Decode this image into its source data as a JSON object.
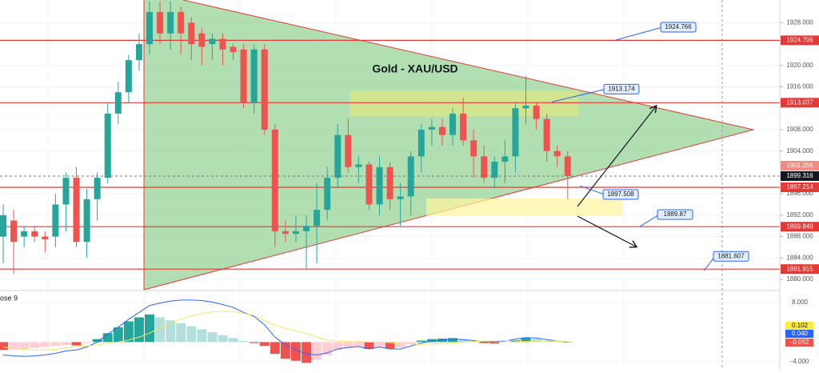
{
  "chart_data": [
    {
      "type": "candlestick",
      "title": "Gold - XAU/USD",
      "series": [
        {
          "up_color": "#26a69a",
          "down_color": "#ef5350",
          "open": [
            1888,
            1891,
            1888,
            1889,
            1888,
            1888,
            1894,
            1899,
            1887,
            1895,
            1899,
            1911,
            1915,
            1921,
            1924,
            1930,
            1926,
            1930,
            1928,
            1926,
            1924,
            1925,
            1923.5,
            1923,
            1913,
            1923,
            1908,
            1889,
            1888.5,
            1889,
            1890,
            1893,
            1899,
            1907,
            1901,
            1901.5,
            1894,
            1901,
            1895,
            1895.5,
            1903,
            1908,
            1908.5,
            1907,
            1911,
            1906,
            1903,
            1899,
            1902,
            1903,
            1912,
            1912.5,
            1910,
            1904,
            1903
          ],
          "high": [
            1894,
            1893,
            1890,
            1890,
            1889,
            1896,
            1900,
            1901,
            1897,
            1900,
            1913,
            1917,
            1922,
            1926,
            1932,
            1932,
            1932,
            1931,
            1929,
            1927,
            1926,
            1926,
            1924,
            1924,
            1924,
            1924,
            1909,
            1891,
            1892,
            1892,
            1898,
            1901,
            1909,
            1910,
            1903,
            1902,
            1903,
            1902,
            1898,
            1904,
            1909,
            1910,
            1910,
            1912,
            1914,
            1908,
            1905,
            1903,
            1906,
            1913,
            1918,
            1913,
            1911,
            1905,
            1904
          ],
          "low": [
            1883,
            1881,
            1886,
            1887,
            1885,
            1886,
            1889,
            1886,
            1884,
            1891,
            1898,
            1909,
            1913,
            1919,
            1922,
            1924,
            1923,
            1922,
            1921,
            1920,
            1921,
            1920,
            1921,
            1912,
            1911,
            1907,
            1886,
            1887,
            1887,
            1882,
            1883,
            1891,
            1897,
            1900,
            1898,
            1893,
            1892,
            1893,
            1890,
            1892,
            1900,
            1905,
            1905,
            1905,
            1905,
            1899,
            1898,
            1897,
            1898,
            1900,
            1909,
            1908,
            1902,
            1901,
            1895
          ],
          "close": [
            1892,
            1887,
            1889,
            1888,
            1887.5,
            1894,
            1899,
            1887,
            1895,
            1899,
            1911,
            1915,
            1921,
            1924,
            1930,
            1926,
            1930,
            1926,
            1924,
            1923.5,
            1925,
            1923,
            1922.5,
            1913,
            1923,
            1908,
            1889,
            1888.5,
            1889,
            1890,
            1893,
            1899,
            1907,
            1901,
            1901.5,
            1894,
            1901,
            1895,
            1895.5,
            1903,
            1908,
            1908.5,
            1907,
            1911,
            1906,
            1903,
            1899,
            1902,
            1903,
            1912,
            1912.5,
            1910,
            1904,
            1903,
            1899.316
          ]
        }
      ],
      "ylim": [
        1878.05,
        1932.25
      ],
      "yticks": [
        {
          "value": 1880,
          "label": "1880.000"
        },
        {
          "value": 1884,
          "label": "1884.000"
        },
        {
          "value": 1888,
          "label": "1888.000"
        },
        {
          "value": 1892,
          "label": "1892.000"
        },
        {
          "value": 1896,
          "label": "1896.000"
        },
        {
          "value": 1904,
          "label": "1904.000"
        },
        {
          "value": 1908,
          "label": "1908.000"
        },
        {
          "value": 1916,
          "label": "1916.000"
        },
        {
          "value": 1920,
          "label": "1920.000"
        },
        {
          "value": 1928,
          "label": "1928.000"
        }
      ],
      "grid": true,
      "levels": [
        {
          "value": 1924.706,
          "color": "#e53935"
        },
        {
          "value": 1913.037,
          "color": "#e53935"
        },
        {
          "value": 1897.214,
          "color": "#e53935"
        },
        {
          "value": 1889.849,
          "color": "#e53935"
        },
        {
          "value": 1881.915,
          "color": "#e53935"
        }
      ],
      "price_labels": [
        {
          "value": 1901.256,
          "color": "#f28b82"
        },
        {
          "value": 1899.316,
          "color": "#131722"
        }
      ],
      "annotations": [
        1924.766,
        1913.174,
        1897.508,
        1889.87,
        1881.607
      ]
    },
    {
      "type": "macd",
      "legend_text": "ose 9",
      "ylim": [
        -5.46,
        10.27
      ],
      "yticks": [
        {
          "value": 8,
          "label": "8.000"
        },
        {
          "value": -4,
          "label": "-4.000"
        }
      ],
      "histogram": [
        -1.6,
        -1.5,
        -1.4,
        -1.2,
        -1.0,
        -0.8,
        -0.6,
        -0.7,
        -0.2,
        0.6,
        1.8,
        3.0,
        4.2,
        5.0,
        5.6,
        5.0,
        4.4,
        3.8,
        3.2,
        2.6,
        2.0,
        1.4,
        0.8,
        0.2,
        -0.2,
        -0.8,
        -2.4,
        -3.4,
        -3.8,
        -4.2,
        -3.6,
        -2.6,
        -1.6,
        -1.2,
        -1.0,
        -1.4,
        -1.0,
        -1.3,
        -1.1,
        -0.4,
        0.3,
        0.6,
        0.7,
        0.8,
        0.5,
        0.2,
        -0.2,
        -0.3,
        -0.1,
        0.4,
        0.8,
        0.6,
        0.3,
        0.1,
        -0.062
      ],
      "histogram_colors": {
        "up_rising": "#26a69a",
        "up_falling": "#b2dfdb",
        "down_falling": "#ef5350",
        "down_rising": "#ffcdd2"
      },
      "series": [
        {
          "color": "#2962ff",
          "values": [
            -2.6,
            -2.8,
            -2.9,
            -2.8,
            -2.6,
            -2.3,
            -1.8,
            -1.6,
            -1.0,
            0,
            1.6,
            3.0,
            4.6,
            6.0,
            7.4,
            7.9,
            8.3,
            8.5,
            8.5,
            8.4,
            8.1,
            7.6,
            7.0,
            6.0,
            5.2,
            3.5,
            1.0,
            -0.6,
            -1.6,
            -2.4,
            -2.6,
            -2.2,
            -1.4,
            -1.1,
            -0.9,
            -1.4,
            -1.0,
            -1.4,
            -1.4,
            -0.8,
            -0.2,
            0.2,
            0.4,
            0.6,
            0.5,
            0.3,
            0,
            0.1,
            0.2,
            0.6,
            0.9,
            0.8,
            0.5,
            0.2,
            0.04
          ]
        },
        {
          "color": "#f5e663",
          "values": [
            -1.0,
            -1.3,
            -1.5,
            -1.6,
            -1.6,
            -1.5,
            -1.2,
            -0.9,
            -0.8,
            -0.6,
            -0.2,
            0,
            0.4,
            1.0,
            1.8,
            2.9,
            3.9,
            4.7,
            5.3,
            5.8,
            6.1,
            6.2,
            6.2,
            5.8,
            5.4,
            4.3,
            3.4,
            2.8,
            2.2,
            1.8,
            1.0,
            0.4,
            0.2,
            0.1,
            0.1,
            0,
            0,
            -0.1,
            -0.3,
            -0.4,
            -0.5,
            -0.4,
            -0.3,
            -0.2,
            0,
            0.1,
            0.2,
            0.2,
            0.3,
            0.2,
            0.1,
            0.2,
            0.2,
            0.2,
            0.102
          ]
        }
      ],
      "last_labels": [
        {
          "value": 0.102,
          "label": "0.102",
          "color": "#ffeb3b",
          "text_color": "#131722"
        },
        {
          "value": 0.04,
          "label": "0.040",
          "color": "#2962ff",
          "text_color": "#ffffff"
        },
        {
          "value": -0.062,
          "label": "-0.062",
          "color": "#ef5350",
          "text_color": "#ffffff"
        }
      ]
    }
  ]
}
